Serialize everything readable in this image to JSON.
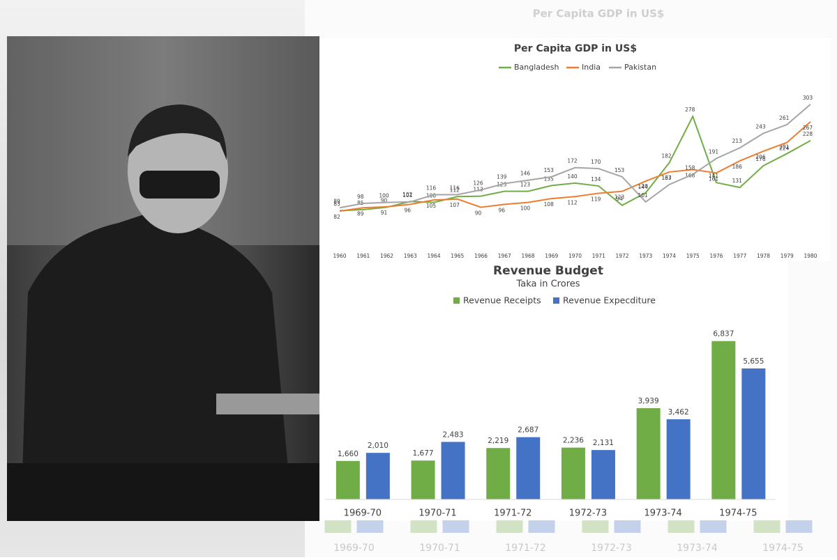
{
  "chart_data": [
    {
      "type": "line",
      "title": "Per Capita GDP in US$",
      "categories": [
        "1960",
        "1961",
        "1962",
        "1963",
        "1964",
        "1965",
        "1966",
        "1967",
        "1968",
        "1969",
        "1970",
        "1971",
        "1972",
        "1973",
        "1974",
        "1975",
        "1976",
        "1977",
        "1978",
        "1979",
        "1980"
      ],
      "series": [
        {
          "name": "Bangladesh",
          "color": "#70ad47",
          "values": [
            83,
            85,
            90,
            102,
            100,
            112,
            113,
            123,
            123,
            135,
            140,
            134,
            94,
            120,
            182,
            278,
            141,
            131,
            176,
            201,
            228
          ]
        },
        {
          "name": "India",
          "color": "#ed7d31",
          "values": [
            82,
            89,
            91,
            96,
            105,
            107,
            90,
            96,
            100,
            108,
            112,
            119,
            123,
            144,
            163,
            168,
            161,
            186,
            206,
            224,
            267
          ]
        },
        {
          "name": "Pakistan",
          "color": "#a5a5a5",
          "values": [
            89,
            98,
            100,
            101,
            116,
            116,
            126,
            139,
            146,
            153,
            172,
            170,
            153,
            101,
            137,
            158,
            191,
            213,
            243,
            261,
            303
          ]
        }
      ],
      "ylim": [
        0,
        320
      ]
    },
    {
      "type": "bar",
      "title": "Revenue Budget",
      "subtitle": "Taka in Crores",
      "categories": [
        "1969-70",
        "1970-71",
        "1971-72",
        "1972-73",
        "1973-74",
        "1974-75"
      ],
      "series": [
        {
          "name": "Revenue Receipts",
          "color": "#70ad47",
          "values": [
            1660,
            1677,
            2219,
            2236,
            3939,
            6837
          ],
          "value_labels": [
            "1,660",
            "1,677",
            "2,219",
            "2,236",
            "3,939",
            "6,837"
          ]
        },
        {
          "name": "Revenue Expecditure",
          "color": "#4472c4",
          "values": [
            2010,
            2483,
            2687,
            2131,
            3462,
            5655
          ],
          "value_labels": [
            "2,010",
            "2,483",
            "2,687",
            "2,131",
            "3,462",
            "5,655"
          ]
        }
      ],
      "ylim": [
        0,
        8000
      ]
    }
  ]
}
